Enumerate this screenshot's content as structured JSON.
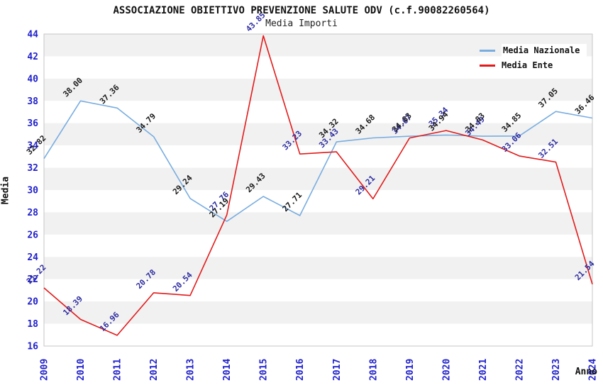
{
  "title": "ASSOCIAZIONE OBIETTIVO PREVENZIONE SALUTE ODV (c.f.90082260564)",
  "subtitle": "Media Importi",
  "legend": {
    "items": [
      {
        "label": "Media Nazionale",
        "color": "#79ade0"
      },
      {
        "label": "Media Ente",
        "color": "#e31a1a"
      }
    ]
  },
  "colors": {
    "tick_label_blue": "#2121cc",
    "nazionale_line": "#79ade0",
    "ente_line": "#e31a1a",
    "nazionale_point_label": "#1a1a1a",
    "ente_point_label": "#2d2da0",
    "band_gray": "#f1f1f1",
    "band_white": "#ffffff",
    "plot_border": "#c6c6c6"
  },
  "chart_data": {
    "type": "line",
    "title": "ASSOCIAZIONE OBIETTIVO PREVENZIONE SALUTE ODV (c.f.90082260564)",
    "subtitle": "Media Importi",
    "xlabel": "Anno",
    "ylabel": "Media",
    "x": [
      2009,
      2010,
      2011,
      2012,
      2013,
      2014,
      2015,
      2016,
      2017,
      2018,
      2019,
      2020,
      2021,
      2022,
      2023,
      2024
    ],
    "ylim": [
      16,
      44
    ],
    "ytick_step": 2,
    "grid": "alternating horizontal bands every 2 units",
    "legend_position": "top-right",
    "point_label_format": "2 decimals, rotated 45deg",
    "series": [
      {
        "name": "Media Nazionale",
        "color": "#79ade0",
        "label_color": "#1a1a1a",
        "values": [
          32.82,
          38.0,
          37.36,
          34.79,
          29.24,
          27.19,
          29.43,
          27.71,
          34.32,
          34.68,
          34.83,
          34.94,
          34.83,
          34.85,
          37.05,
          36.46
        ]
      },
      {
        "name": "Media Ente",
        "color": "#e31a1a",
        "label_color": "#2d2da0",
        "values": [
          21.22,
          18.39,
          16.96,
          20.78,
          20.54,
          27.76,
          43.85,
          33.23,
          33.43,
          29.21,
          34.67,
          35.34,
          34.49,
          33.06,
          32.51,
          21.54
        ]
      }
    ]
  }
}
